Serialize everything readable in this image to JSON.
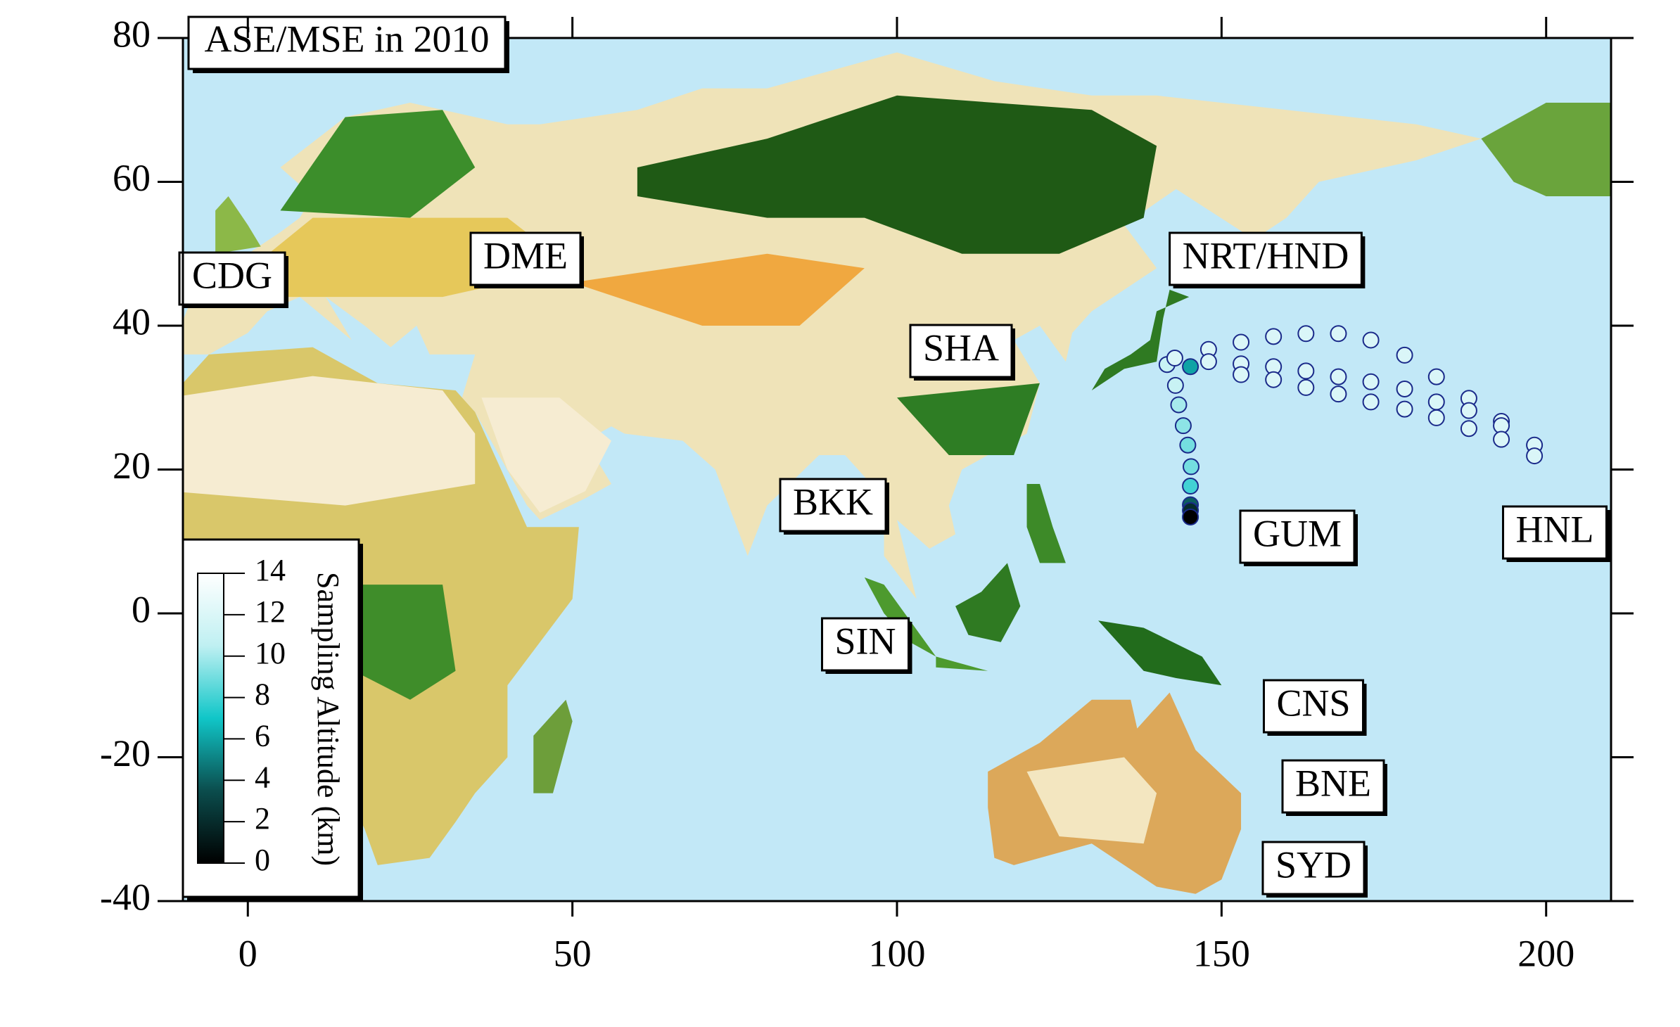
{
  "chart_data": {
    "type": "scatter",
    "title": "ASE/MSE in 2010",
    "x": [
      141.6,
      142.8,
      145.2,
      142.9,
      143.4,
      144.1,
      144.8,
      145.3,
      145.2,
      145.2,
      145.2,
      145.2,
      148,
      153,
      158,
      163,
      168,
      173,
      178.2,
      183.1,
      188.1,
      193.1,
      198.2,
      148,
      153,
      158,
      163,
      168,
      173,
      178.2,
      183.1,
      188.1,
      193.1,
      198.2,
      153,
      158,
      163,
      168,
      173,
      178.2,
      183.1,
      188.1,
      193.1
    ],
    "y": [
      34.6,
      35.5,
      34.3,
      31.7,
      29.0,
      26.1,
      23.4,
      20.4,
      17.7,
      15.1,
      14.3,
      13.4,
      36.7,
      37.7,
      38.5,
      38.9,
      38.9,
      38.0,
      35.9,
      32.9,
      29.9,
      26.7,
      23.4,
      35.0,
      34.7,
      34.3,
      33.7,
      32.9,
      32.2,
      31.2,
      29.4,
      28.2,
      26.1,
      21.9,
      33.2,
      32.5,
      31.4,
      30.5,
      29.4,
      28.4,
      27.2,
      25.7,
      24.2
    ],
    "altitude": [
      11,
      12,
      6,
      11,
      10,
      9.5,
      9,
      9,
      8,
      4,
      2,
      0,
      12,
      12,
      12,
      12,
      12,
      12,
      12,
      12,
      12,
      12,
      12,
      12,
      12,
      12,
      12,
      12,
      12,
      12,
      12,
      12,
      12,
      12,
      12,
      12,
      12,
      12,
      12,
      12,
      12,
      12,
      12
    ],
    "marker_edge_color": "#1a2a8a",
    "colorbar": {
      "label": "Sampling Altitude (km)",
      "lim": [
        0,
        14
      ],
      "ticks": [
        0,
        2,
        4,
        6,
        8,
        10,
        12,
        14
      ],
      "colormap": [
        "#000000",
        "#0b4d4d",
        "#10c6c8",
        "#bff0f2",
        "#ffffff"
      ]
    },
    "annotations": [
      "CDG",
      "DME",
      "NRT/HND",
      "SHA",
      "BKK",
      "GUM",
      "HNL",
      "SIN",
      "CNS",
      "BNE",
      "SYD"
    ],
    "xlim": [
      -10,
      210
    ],
    "ylim": [
      -40,
      80
    ],
    "xticks": [
      0,
      50,
      100,
      150,
      200
    ],
    "yticks": [
      -40,
      -20,
      0,
      20,
      40,
      60,
      80
    ]
  }
}
